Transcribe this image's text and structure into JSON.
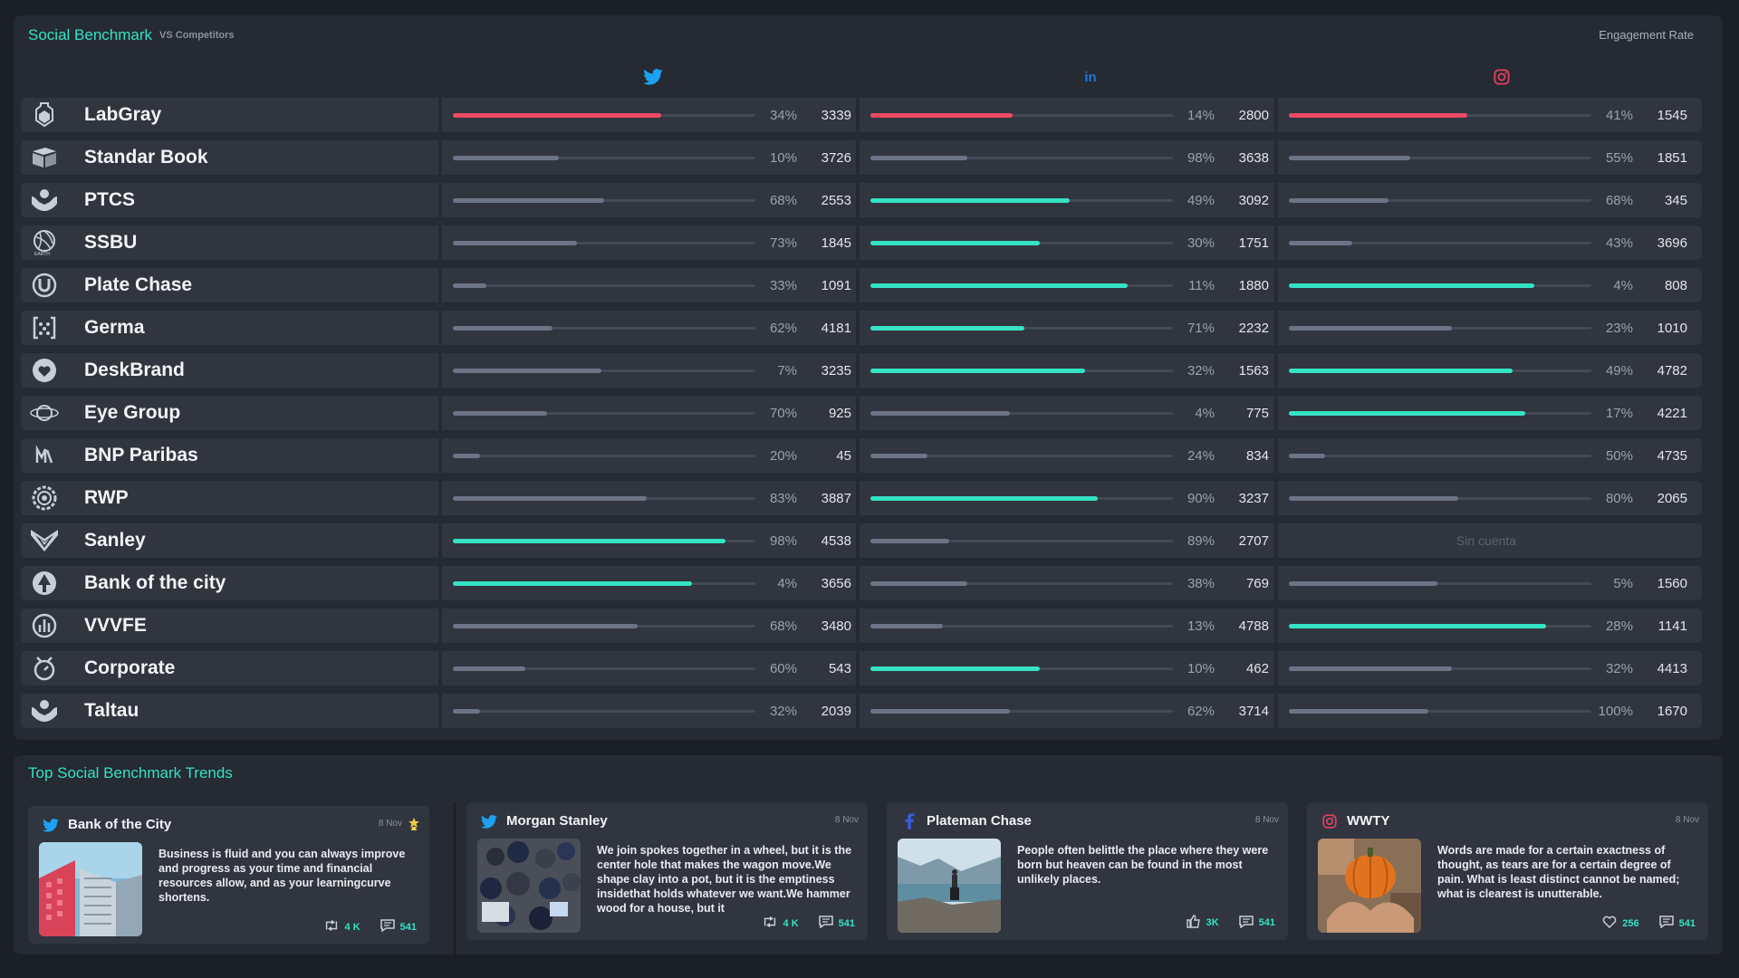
{
  "header": {
    "title": "Social Benchmark",
    "subtitle": "VS Competitors",
    "metric": "Engagement Rate"
  },
  "colors": {
    "accent": "#35e2c4",
    "negative": "#ef4a64",
    "neutral": "#6c7487",
    "twitter": "#1da1f2",
    "linkedin": "#0a66c2",
    "instagram": "#e4405f"
  },
  "networks": [
    "twitter-icon",
    "linkedin-icon",
    "instagram-icon"
  ],
  "rows": [
    {
      "name": "LabGray",
      "icon": "flask-icon",
      "tw": {
        "pct": "34%",
        "val": "3339",
        "fill": 0.69,
        "status": "negative"
      },
      "li": {
        "pct": "14%",
        "val": "2800",
        "fill": 0.47,
        "status": "negative"
      },
      "ig": {
        "pct": "41%",
        "val": "1545",
        "fill": 0.59,
        "status": "negative"
      }
    },
    {
      "name": "Standar Book",
      "icon": "book-icon",
      "tw": {
        "pct": "10%",
        "val": "3726",
        "fill": 0.35,
        "status": "neutral"
      },
      "li": {
        "pct": "98%",
        "val": "3638",
        "fill": 0.32,
        "status": "neutral"
      },
      "ig": {
        "pct": "55%",
        "val": "1851",
        "fill": 0.4,
        "status": "neutral"
      }
    },
    {
      "name": "PTCS",
      "icon": "hands-icon",
      "tw": {
        "pct": "68%",
        "val": "2553",
        "fill": 0.5,
        "status": "neutral"
      },
      "li": {
        "pct": "49%",
        "val": "3092",
        "fill": 0.66,
        "status": "positive"
      },
      "ig": {
        "pct": "68%",
        "val": "345",
        "fill": 0.33,
        "status": "neutral"
      }
    },
    {
      "name": "SSBU",
      "icon": "globe-icon",
      "tw": {
        "pct": "73%",
        "val": "1845",
        "fill": 0.41,
        "status": "neutral"
      },
      "li": {
        "pct": "30%",
        "val": "1751",
        "fill": 0.56,
        "status": "positive"
      },
      "ig": {
        "pct": "43%",
        "val": "3696",
        "fill": 0.21,
        "status": "neutral"
      }
    },
    {
      "name": "Plate Chase",
      "icon": "u-circle-icon",
      "tw": {
        "pct": "33%",
        "val": "1091",
        "fill": 0.11,
        "status": "neutral"
      },
      "li": {
        "pct": "11%",
        "val": "1880",
        "fill": 0.85,
        "status": "positive"
      },
      "ig": {
        "pct": "4%",
        "val": "808",
        "fill": 0.81,
        "status": "positive"
      }
    },
    {
      "name": "Germa",
      "icon": "brackets-icon",
      "tw": {
        "pct": "62%",
        "val": "4181",
        "fill": 0.33,
        "status": "neutral"
      },
      "li": {
        "pct": "71%",
        "val": "2232",
        "fill": 0.51,
        "status": "positive"
      },
      "ig": {
        "pct": "23%",
        "val": "1010",
        "fill": 0.54,
        "status": "neutral"
      }
    },
    {
      "name": "DeskBrand",
      "icon": "heart-icon",
      "tw": {
        "pct": "7%",
        "val": "3235",
        "fill": 0.49,
        "status": "neutral"
      },
      "li": {
        "pct": "32%",
        "val": "1563",
        "fill": 0.71,
        "status": "positive"
      },
      "ig": {
        "pct": "49%",
        "val": "4782",
        "fill": 0.74,
        "status": "positive"
      }
    },
    {
      "name": "Eye Group",
      "icon": "planet-icon",
      "tw": {
        "pct": "70%",
        "val": "925",
        "fill": 0.31,
        "status": "neutral"
      },
      "li": {
        "pct": "4%",
        "val": "775",
        "fill": 0.46,
        "status": "neutral"
      },
      "ig": {
        "pct": "17%",
        "val": "4221",
        "fill": 0.78,
        "status": "positive"
      }
    },
    {
      "name": "BNP Paribas",
      "icon": "m-letter-icon",
      "tw": {
        "pct": "20%",
        "val": "45",
        "fill": 0.09,
        "status": "neutral"
      },
      "li": {
        "pct": "24%",
        "val": "834",
        "fill": 0.19,
        "status": "neutral"
      },
      "ig": {
        "pct": "50%",
        "val": "4735",
        "fill": 0.12,
        "status": "neutral"
      }
    },
    {
      "name": "RWP",
      "icon": "at-gear-icon",
      "tw": {
        "pct": "83%",
        "val": "3887",
        "fill": 0.64,
        "status": "neutral"
      },
      "li": {
        "pct": "90%",
        "val": "3237",
        "fill": 0.75,
        "status": "positive"
      },
      "ig": {
        "pct": "80%",
        "val": "2065",
        "fill": 0.56,
        "status": "neutral"
      }
    },
    {
      "name": "Sanley",
      "icon": "fox-icon",
      "tw": {
        "pct": "98%",
        "val": "4538",
        "fill": 0.9,
        "status": "positive"
      },
      "li": {
        "pct": "89%",
        "val": "2707",
        "fill": 0.26,
        "status": "neutral"
      },
      "ig": {
        "na": "Sin cuenta"
      }
    },
    {
      "name": "Bank of the city",
      "icon": "tree-icon",
      "tw": {
        "pct": "4%",
        "val": "3656",
        "fill": 0.79,
        "status": "positive"
      },
      "li": {
        "pct": "38%",
        "val": "769",
        "fill": 0.32,
        "status": "neutral"
      },
      "ig": {
        "pct": "5%",
        "val": "1560",
        "fill": 0.49,
        "status": "neutral"
      }
    },
    {
      "name": "VVVFE",
      "icon": "chart-circle-icon",
      "tw": {
        "pct": "68%",
        "val": "3480",
        "fill": 0.61,
        "status": "neutral"
      },
      "li": {
        "pct": "13%",
        "val": "4788",
        "fill": 0.24,
        "status": "neutral"
      },
      "ig": {
        "pct": "28%",
        "val": "1141",
        "fill": 0.85,
        "status": "positive"
      }
    },
    {
      "name": "Corporate",
      "icon": "timer-icon",
      "tw": {
        "pct": "60%",
        "val": "543",
        "fill": 0.24,
        "status": "neutral"
      },
      "li": {
        "pct": "10%",
        "val": "462",
        "fill": 0.56,
        "status": "positive"
      },
      "ig": {
        "pct": "32%",
        "val": "4413",
        "fill": 0.54,
        "status": "neutral"
      }
    },
    {
      "name": "Taltau",
      "icon": "hands-icon",
      "tw": {
        "pct": "32%",
        "val": "2039",
        "fill": 0.09,
        "status": "neutral"
      },
      "li": {
        "pct": "62%",
        "val": "3714",
        "fill": 0.46,
        "status": "neutral"
      },
      "ig": {
        "pct": "100%",
        "val": "1670",
        "fill": 0.46,
        "status": "neutral"
      }
    }
  ],
  "trends": {
    "title": "Top Social Benchmark Trends",
    "cards": [
      {
        "network": "twitter-icon",
        "title": "Bank of the City",
        "date": "8 Nov",
        "starred": true,
        "image": "building-photo",
        "text": "Business is fluid and you can always improve and progress as your time and financial resources allow, and as your learningcurve shortens.",
        "stat1_icon": "retweet-icon",
        "stat1": "4 K",
        "stat2_icon": "comment-icon",
        "stat2": "541"
      },
      {
        "network": "twitter-icon",
        "title": "Morgan Stanley",
        "date": "8 Nov",
        "starred": false,
        "image": "crowd-photo",
        "text": "We join spokes together in a wheel, but it is the center hole that makes the wagon move.We shape clay into a pot, but it is the emptiness insidethat holds whatever we want.We hammer wood for a house, but it",
        "stat1_icon": "retweet-icon",
        "stat1": "4 K",
        "stat2_icon": "comment-icon",
        "stat2": "541"
      },
      {
        "network": "facebook-icon",
        "title": "Plateman Chase",
        "date": "8 Nov",
        "starred": false,
        "image": "lake-photo",
        "text": "People often belittle the place where they were born but heaven can be found in the most unlikely places.",
        "stat1_icon": "like-icon",
        "stat1": "3K",
        "stat2_icon": "comment-icon",
        "stat2": "541"
      },
      {
        "network": "instagram-icon",
        "title": "WWTY",
        "date": "8 Nov",
        "starred": false,
        "image": "pumpkin-photo",
        "text": "Words are made for a certain exactness of thought, as tears are for a certain degree of pain. What is least distinct cannot be named; what is clearest is unutterable.",
        "stat1_icon": "heart-outline-icon",
        "stat1": "256",
        "stat2_icon": "comment-icon",
        "stat2": "541"
      }
    ]
  }
}
